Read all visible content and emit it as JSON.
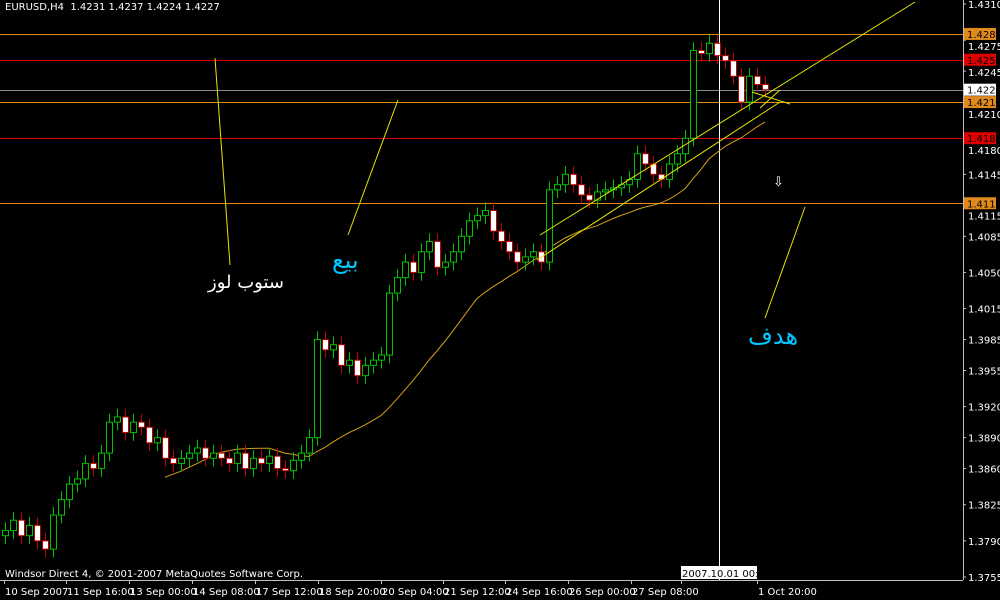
{
  "header": {
    "symbol": "EURUSD,H4",
    "ohlc": "1.4231 1.4237 1.4224 1.4227"
  },
  "footer": {
    "copyright": "Windsor Direct 4, © 2001-2007 MetaQuotes Software Corp."
  },
  "annotations": {
    "stop_loss": {
      "text": "ستوب لوز",
      "color": "#ffffff"
    },
    "sell": {
      "text": "بيع",
      "color": "#00c8ff"
    },
    "target": {
      "text": "هدف",
      "color": "#00c8ff"
    },
    "down_arrow": "⇩"
  },
  "colors": {
    "bull": "#00c000",
    "bear_outline": "#c00000",
    "bear_body": "#ffffff",
    "ma": "#d4a017",
    "trendline": "#e6e600",
    "axis": "#c0c0c0"
  },
  "chart_data": {
    "type": "candlestick",
    "title": "EURUSD,H4",
    "ylim": [
      1.3755,
      1.431
    ],
    "y_ticks": [
      "1.4310",
      "1.4275",
      "1.4245",
      "1.4210",
      "1.4180",
      "1.4145",
      "1.4115",
      "1.4085",
      "1.4050",
      "1.4015",
      "1.3985",
      "1.3955",
      "1.3920",
      "1.3890",
      "1.3860",
      "1.3825",
      "1.3790",
      "1.3755"
    ],
    "x_ticks": [
      "10 Sep 2007",
      "11 Sep 16:00",
      "13 Sep 00:00",
      "14 Sep 08:00",
      "17 Sep 12:00",
      "18 Sep 20:00",
      "20 Sep 04:00",
      "21 Sep 12:00",
      "24 Sep 16:00",
      "26 Sep 00:00",
      "27 Sep 08:00",
      "2007.10.01 00:00",
      "1 Oct 20:00"
    ],
    "crosshair_time": "2007.10.01 00:00",
    "closes": [
      1.38,
      1.381,
      1.3795,
      1.3805,
      1.379,
      1.3782,
      1.3815,
      1.383,
      1.3845,
      1.385,
      1.3865,
      1.386,
      1.3875,
      1.3905,
      1.391,
      1.3895,
      1.3905,
      1.39,
      1.3885,
      1.389,
      1.387,
      1.3865,
      1.387,
      1.3875,
      1.388,
      1.387,
      1.3875,
      1.387,
      1.3865,
      1.3875,
      1.386,
      1.387,
      1.3865,
      1.3872,
      1.386,
      1.3858,
      1.3868,
      1.3875,
      1.389,
      1.3985,
      1.3975,
      1.398,
      1.396,
      1.3965,
      1.395,
      1.396,
      1.3965,
      1.397,
      1.403,
      1.4045,
      1.406,
      1.405,
      1.407,
      1.408,
      1.4055,
      1.406,
      1.407,
      1.4085,
      1.41,
      1.4105,
      1.411,
      1.409,
      1.408,
      1.407,
      1.406,
      1.4065,
      1.407,
      1.406,
      1.413,
      1.4135,
      1.4145,
      1.4135,
      1.4125,
      1.412,
      1.4128,
      1.413,
      1.4132,
      1.4135,
      1.414,
      1.4165,
      1.4155,
      1.4145,
      1.414,
      1.4155,
      1.4165,
      1.418,
      1.4265,
      1.4262,
      1.4272,
      1.426,
      1.4255,
      1.424,
      1.4215,
      1.424,
      1.4232,
      1.4227
    ],
    "levels": [
      {
        "price": "1.4281",
        "color": "#e08a1e"
      },
      {
        "price": "1.4256",
        "color": "#e00000"
      },
      {
        "price": "1.4227",
        "color": "#8a8a8a",
        "label_bg": "#ffffff"
      },
      {
        "price": "1.4215",
        "color": "#e08a1e"
      },
      {
        "price": "1.4180",
        "color": "#e00000"
      },
      {
        "price": "1.4117",
        "color": "#e08a1e"
      }
    ]
  }
}
